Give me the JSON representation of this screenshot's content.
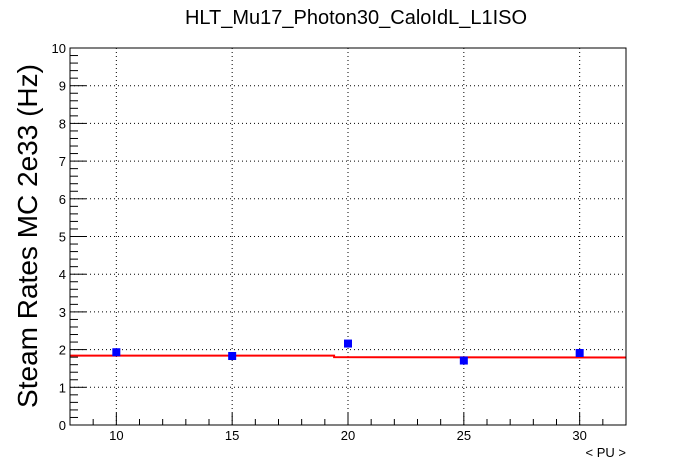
{
  "chart_data": {
    "type": "scatter",
    "title": "HLT_Mu17_Photon30_CaloIdL_L1ISO",
    "xlabel": "< PU >",
    "ylabel": "Steam Rates MC 2e33 (Hz)",
    "xlim": [
      8,
      32
    ],
    "ylim": [
      0,
      10
    ],
    "x_ticks": [
      10,
      15,
      20,
      25,
      30
    ],
    "y_ticks": [
      0,
      1,
      2,
      3,
      4,
      5,
      6,
      7,
      8,
      9,
      10
    ],
    "grid": true,
    "series": [
      {
        "x": [
          10,
          15,
          20,
          25,
          30
        ],
        "y": [
          1.93,
          1.83,
          2.16,
          1.71,
          1.91
        ],
        "color": "#0000ff",
        "marker": "square"
      }
    ],
    "fit": {
      "x": [
        8,
        19.4,
        19.4,
        32
      ],
      "y": [
        1.84,
        1.84,
        1.8,
        1.79
      ],
      "color": "#ff0000"
    }
  }
}
